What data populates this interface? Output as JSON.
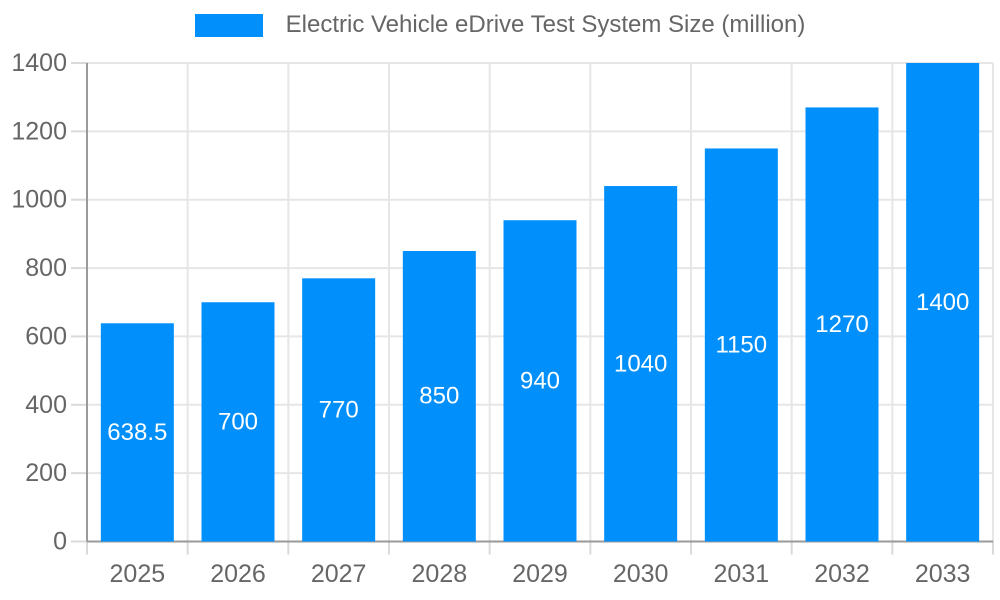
{
  "legend": {
    "label": "Electric Vehicle eDrive Test System Size (million)"
  },
  "chart_data": {
    "type": "bar",
    "title": "Electric Vehicle eDrive Test System Size (million)",
    "xlabel": "",
    "ylabel": "",
    "categories": [
      "2025",
      "2026",
      "2027",
      "2028",
      "2029",
      "2030",
      "2031",
      "2032",
      "2033"
    ],
    "series": [
      {
        "name": "Electric Vehicle eDrive Test System Size (million)",
        "values": [
          638.5,
          700,
          770,
          850,
          940,
          1040,
          1150,
          1270,
          1400
        ]
      }
    ],
    "data_labels": [
      "638.5",
      "700",
      "770",
      "850",
      "940",
      "1040",
      "1150",
      "1270",
      "1400"
    ],
    "ylim": [
      0,
      1400
    ],
    "yticks": [
      0,
      200,
      400,
      600,
      800,
      1000,
      1200,
      1400
    ],
    "grid": true,
    "legend_position": "top",
    "colors": {
      "bar": "#008FFB",
      "grid": "#e6e6e6",
      "tick": "#d9d9d9",
      "axis": "#9a9a9a",
      "text": "#666666",
      "data_label": "#ffffff",
      "background": "#ffffff"
    }
  }
}
